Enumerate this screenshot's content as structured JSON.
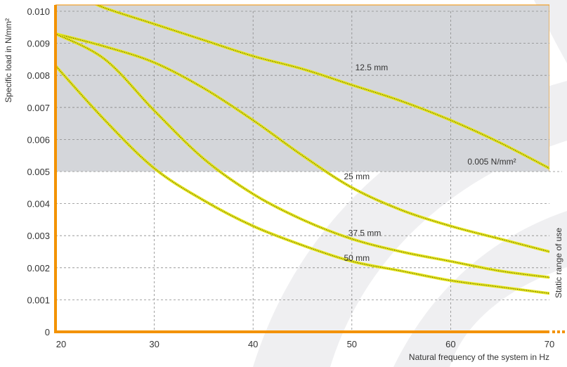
{
  "chart_data": {
    "type": "line",
    "xlabel": "Natural frequency of the system in Hz",
    "ylabel": "Specific load in N/mm²",
    "xlim": [
      20,
      70
    ],
    "ylim": [
      0,
      0.01
    ],
    "grid": true,
    "x_ticks": [
      "20",
      "30",
      "40",
      "50",
      "60",
      "70"
    ],
    "y_ticks": [
      "0",
      "0.001",
      "0.002",
      "0.003",
      "0.004",
      "0.005",
      "0.006",
      "0.007",
      "0.008",
      "0.009",
      "0.010"
    ],
    "threshold": {
      "value": 0.005,
      "label": "0.005 N/mm²"
    },
    "side_label": "Static range of use",
    "colors": {
      "shaded": "#d4d6da",
      "curve": "#e6e619",
      "curve_dots": "#3a3a20",
      "axis": "#f39200"
    },
    "series": [
      {
        "name": "12.5 mm",
        "x": [
          23,
          25,
          30,
          35,
          40,
          45,
          50,
          55,
          60,
          65,
          70
        ],
        "y": [
          0.0104,
          0.0101,
          0.0096,
          0.0091,
          0.0086,
          0.0082,
          0.0077,
          0.0072,
          0.0066,
          0.0059,
          0.0051
        ]
      },
      {
        "name": "25 mm",
        "x": [
          20,
          25,
          30,
          35,
          40,
          45,
          50,
          55,
          60,
          65,
          70
        ],
        "y": [
          0.0093,
          0.0089,
          0.0084,
          0.0076,
          0.0066,
          0.0055,
          0.0045,
          0.0038,
          0.0033,
          0.0029,
          0.0025
        ]
      },
      {
        "name": "37.5 mm",
        "x": [
          20,
          25,
          30,
          35,
          40,
          45,
          50,
          55,
          60,
          65,
          70
        ],
        "y": [
          0.0093,
          0.0085,
          0.0069,
          0.0054,
          0.0043,
          0.0035,
          0.0029,
          0.0025,
          0.0022,
          0.0019,
          0.0017
        ]
      },
      {
        "name": "50 mm",
        "x": [
          20,
          25,
          30,
          35,
          40,
          45,
          50,
          55,
          60,
          65,
          70
        ],
        "y": [
          0.0083,
          0.0066,
          0.0051,
          0.0041,
          0.0033,
          0.0027,
          0.0022,
          0.0019,
          0.0016,
          0.0014,
          0.0012
        ]
      }
    ],
    "curve_labels": [
      {
        "series": "12.5 mm",
        "x": 52,
        "y": 0.00825
      },
      {
        "series": "25 mm",
        "x": 50.5,
        "y": 0.00485
      },
      {
        "series": "37.5 mm",
        "x": 51.3,
        "y": 0.00308
      },
      {
        "series": "50 mm",
        "x": 50.5,
        "y": 0.0023
      }
    ]
  }
}
